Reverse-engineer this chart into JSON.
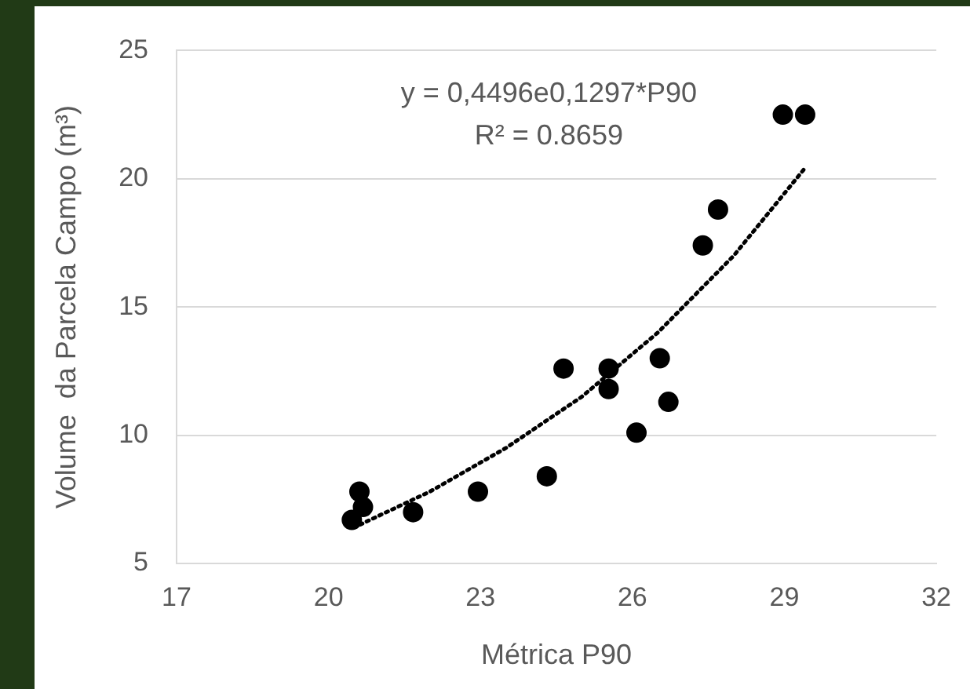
{
  "chart_data": {
    "type": "scatter",
    "xlabel": "Métrica P90",
    "ylabel": "Volume  da Parcela Campo (m³)",
    "annotations": [
      "y = 0,4496e0,1297*P90",
      "R² = 0.8659"
    ],
    "xlim": [
      17,
      32
    ],
    "xticks": [
      17,
      20,
      23,
      26,
      29,
      32
    ],
    "ylim": [
      5,
      25
    ],
    "yticks": [
      5,
      10,
      15,
      20,
      25
    ],
    "grid": "y",
    "legend": false,
    "marker": "circle",
    "series": [
      {
        "color": "#000000",
        "x": [
          20.46,
          20.61,
          20.68,
          21.67,
          22.95,
          24.31,
          24.64,
          25.53,
          25.53,
          26.08,
          26.54,
          26.71,
          27.39,
          27.69,
          28.97,
          29.41
        ],
        "values": [
          6.7,
          7.8,
          7.2,
          7.0,
          7.8,
          8.4,
          12.6,
          12.6,
          11.8,
          10.1,
          13.0,
          11.3,
          17.4,
          18.8,
          22.5,
          22.5
        ]
      },
      {
        "type": "line",
        "color": "#000000",
        "line_style": "dotted",
        "marker": "none",
        "x": [
          20.5,
          22,
          23.5,
          25,
          26.5,
          28,
          29.4
        ],
        "values": [
          6.4,
          7.8,
          9.5,
          11.5,
          14.0,
          17.0,
          20.4
        ]
      }
    ]
  }
}
